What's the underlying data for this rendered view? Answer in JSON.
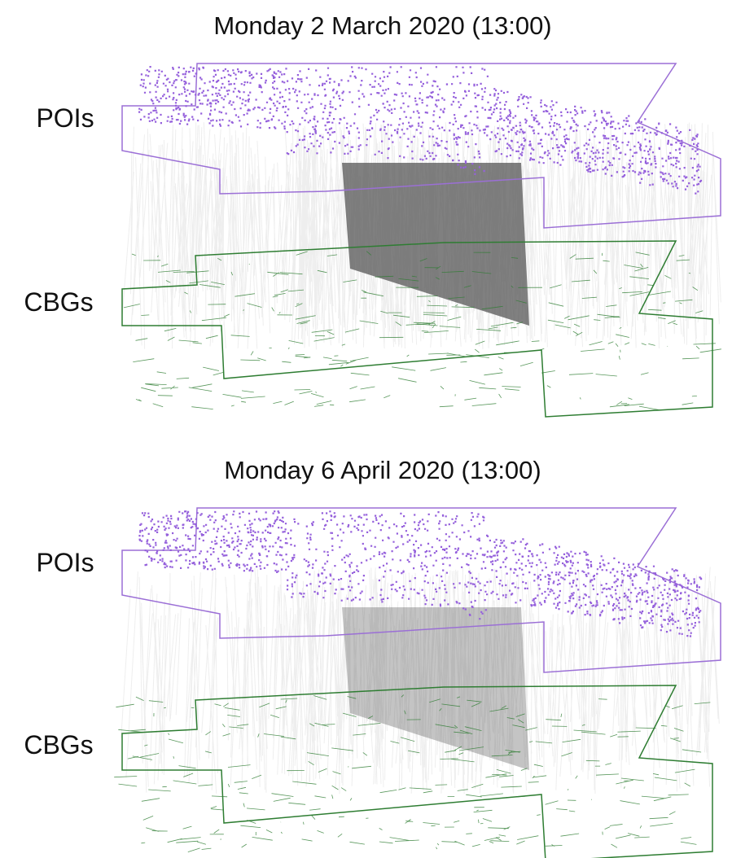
{
  "panels": [
    {
      "title": "Monday 2 March 2020 (13:00)",
      "top_label": "POIs",
      "bottom_label": "CBGs"
    },
    {
      "title": "Monday 6 April 2020 (13:00)",
      "top_label": "POIs",
      "bottom_label": "CBGs"
    }
  ]
}
